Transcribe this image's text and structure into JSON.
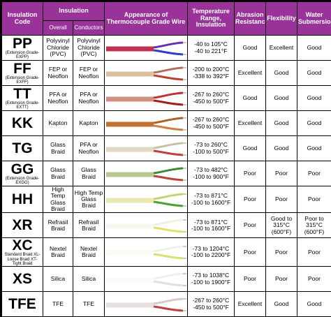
{
  "header": {
    "code": "Insulation Code",
    "insulation": "Insulation",
    "overall": "Overall",
    "conductors": "Conductors",
    "appearance": "Appearance of Thermocouple Grade Wire",
    "temperature": "Temperature Range, Insulation",
    "abrasion": "Abrasion Resistance",
    "flexibility": "Flexibility",
    "water": "Water Submersion"
  },
  "rows": [
    {
      "code": "PP",
      "note": "(Extension Grade-EXPP)",
      "overall": "Polyvinyl Chloride (PVC)",
      "conductors": "Polyvinyl Chloride (PVC)",
      "temp_c": "-40 to 105°C",
      "temp_f": "-40 to 221°F",
      "abrasion": "Good",
      "flexibility": "Excellent",
      "water": "Good"
    },
    {
      "code": "FF",
      "note": "(Extension Grade-EXFF)",
      "overall": "FEP or Neoflon",
      "conductors": "FEP or Neoflon",
      "temp_c": "-200 to 200°C",
      "temp_f": "-338 to 392°F",
      "abrasion": "Excellent",
      "flexibility": "Good",
      "water": "Good"
    },
    {
      "code": "TT",
      "note": "(Extension Grade-EXTT)",
      "overall": "PFA or Neoflon",
      "conductors": "PFA or Neoflon",
      "temp_c": "-267 to 260°C",
      "temp_f": "-450 to 500°F",
      "abrasion": "Good",
      "flexibility": "Good",
      "water": "Good"
    },
    {
      "code": "KK",
      "overall": "Kapton",
      "conductors": "Kapton",
      "temp_c": "-267 to 260°C",
      "temp_f": "-450 to 500°F",
      "abrasion": "Excellent",
      "flexibility": "Good",
      "water": "Good"
    },
    {
      "code": "TG",
      "overall": "Glass Braid",
      "conductors": "PFA or Neoflon",
      "temp_c": "-73 to 260°C",
      "temp_f": "-100 to 500°F",
      "abrasion": "Good",
      "flexibility": "Good",
      "water": "Good"
    },
    {
      "code": "GG",
      "note": "(Extension Grade-EXGG)",
      "overall": "Glass Braid",
      "conductors": "Glass Braid",
      "temp_c": "-73 to 482°C",
      "temp_f": "-100 to 900°F",
      "abrasion": "Poor",
      "flexibility": "Poor",
      "water": "Poor"
    },
    {
      "code": "HH",
      "overall": "High Temp Glass Braid",
      "conductors": "High Temp Glass Braid",
      "temp_c": "-73 to 871°C",
      "temp_f": "-100 to 1600°F",
      "abrasion": "Poor",
      "flexibility": "Poor",
      "water": "Poor"
    },
    {
      "code": "XR",
      "overall": "Refrasil Braid",
      "conductors": "Refrasil Braid",
      "temp_c": "-73 to 871°C",
      "temp_f": "-100 to 1600°F",
      "abrasion": "Poor",
      "flexibility": "Good to 315°C (600°F)",
      "water": "Poor to 315°C (600°F)"
    },
    {
      "code": "XC",
      "note": "Standard Braid XL-Loose Braid XT-Tight Braid",
      "overall": "Nextel Braid",
      "conductors": "Nextel Braid",
      "temp_c": "-73 to 1204°C",
      "temp_f": "-100 to 2200°F",
      "abrasion": "Poor",
      "flexibility": "Poor",
      "water": "Poor"
    },
    {
      "code": "XS",
      "overall": "Silica",
      "conductors": "Silica",
      "temp_c": "-73 to 1038°C",
      "temp_f": "-100 to 1900°F",
      "abrasion": "Poor",
      "flexibility": "Poor",
      "water": "Poor"
    },
    {
      "code": "TFE",
      "overall": "TFE",
      "conductors": "TFE",
      "temp_c": "-267 to 260°C",
      "temp_f": "-450 to 500°F",
      "abrasion": "Excellent",
      "flexibility": "Good",
      "water": "Good"
    }
  ]
}
